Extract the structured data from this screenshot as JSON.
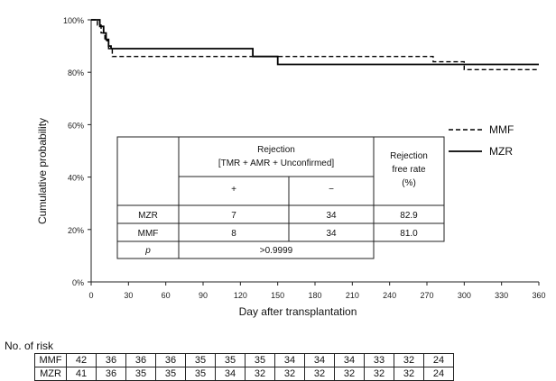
{
  "chart_data": {
    "type": "line",
    "title": "",
    "xlabel": "Day after transplantation",
    "ylabel": "Cumulative probability",
    "xlim": [
      0,
      360
    ],
    "ylim": [
      0,
      1
    ],
    "x_ticks": [
      "0",
      "30",
      "60",
      "90",
      "120",
      "150",
      "180",
      "210",
      "240",
      "270",
      "300",
      "330",
      "360"
    ],
    "y_ticks": [
      "0%",
      "20%",
      "40%",
      "60%",
      "80%",
      "100%"
    ],
    "grid": false,
    "legend_position": "right",
    "series": [
      {
        "name": "MMF",
        "line_style": "dashed",
        "points": [
          [
            0,
            1.0
          ],
          [
            5,
            1.0
          ],
          [
            5,
            0.98
          ],
          [
            8,
            0.98
          ],
          [
            8,
            0.95
          ],
          [
            11,
            0.95
          ],
          [
            11,
            0.92
          ],
          [
            14,
            0.92
          ],
          [
            14,
            0.89
          ],
          [
            17,
            0.89
          ],
          [
            17,
            0.86
          ],
          [
            275,
            0.86
          ],
          [
            275,
            0.84
          ],
          [
            300,
            0.84
          ],
          [
            300,
            0.81
          ],
          [
            360,
            0.81
          ]
        ]
      },
      {
        "name": "MZR",
        "line_style": "solid",
        "points": [
          [
            0,
            1.0
          ],
          [
            7,
            1.0
          ],
          [
            7,
            0.975
          ],
          [
            10,
            0.975
          ],
          [
            10,
            0.95
          ],
          [
            12,
            0.95
          ],
          [
            12,
            0.925
          ],
          [
            14,
            0.925
          ],
          [
            14,
            0.9
          ],
          [
            16,
            0.9
          ],
          [
            16,
            0.89
          ],
          [
            130,
            0.89
          ],
          [
            130,
            0.86
          ],
          [
            150,
            0.86
          ],
          [
            150,
            0.83
          ],
          [
            360,
            0.83
          ]
        ]
      }
    ]
  },
  "inset_table": {
    "header_rejection": "Rejection",
    "header_rejection_sub": "[TMR + AMR + Unconfirmed]",
    "header_free_1": "Rejection",
    "header_free_2": "free rate",
    "header_free_3": "(%)",
    "col_plus": "+",
    "col_minus": "−",
    "rows": [
      {
        "label": "MZR",
        "plus": "7",
        "minus": "34",
        "rate": "82.9"
      },
      {
        "label": "MMF",
        "plus": "8",
        "minus": "34",
        "rate": "81.0"
      }
    ],
    "p_label": "p",
    "p_value": ">0.9999"
  },
  "risk_table": {
    "title": "No. of risk",
    "rows": [
      {
        "label": "MMF",
        "values": [
          "42",
          "36",
          "36",
          "36",
          "35",
          "35",
          "35",
          "34",
          "34",
          "34",
          "33",
          "32",
          "24"
        ]
      },
      {
        "label": "MZR",
        "values": [
          "41",
          "36",
          "35",
          "35",
          "35",
          "34",
          "32",
          "32",
          "32",
          "32",
          "32",
          "32",
          "24"
        ]
      }
    ]
  }
}
